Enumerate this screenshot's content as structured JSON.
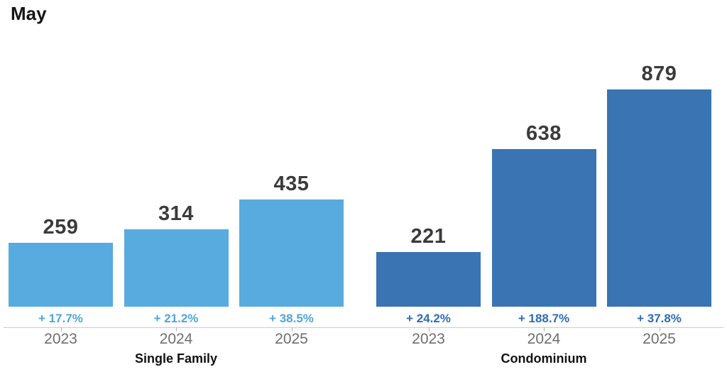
{
  "chart_data": {
    "type": "bar",
    "title": "May",
    "ylim": [
      0,
      879
    ],
    "grid": false,
    "legend": "none",
    "value_labels": true,
    "groups": [
      {
        "label": "Single Family",
        "bar_color": "#58ABDE",
        "pct_color": "#4FA5DC",
        "categories": [
          "2023",
          "2024",
          "2025"
        ],
        "values": [
          259,
          314,
          435
        ],
        "pct_changes": [
          "+ 17.7%",
          "+ 21.2%",
          "+ 38.5%"
        ]
      },
      {
        "label": "Condominium",
        "bar_color": "#3A74B2",
        "pct_color": "#2E6CB5",
        "categories": [
          "2023",
          "2024",
          "2025"
        ],
        "values": [
          221,
          638,
          879
        ],
        "pct_changes": [
          "+ 24.2%",
          "+ 188.7%",
          "+ 37.8%"
        ]
      }
    ]
  }
}
